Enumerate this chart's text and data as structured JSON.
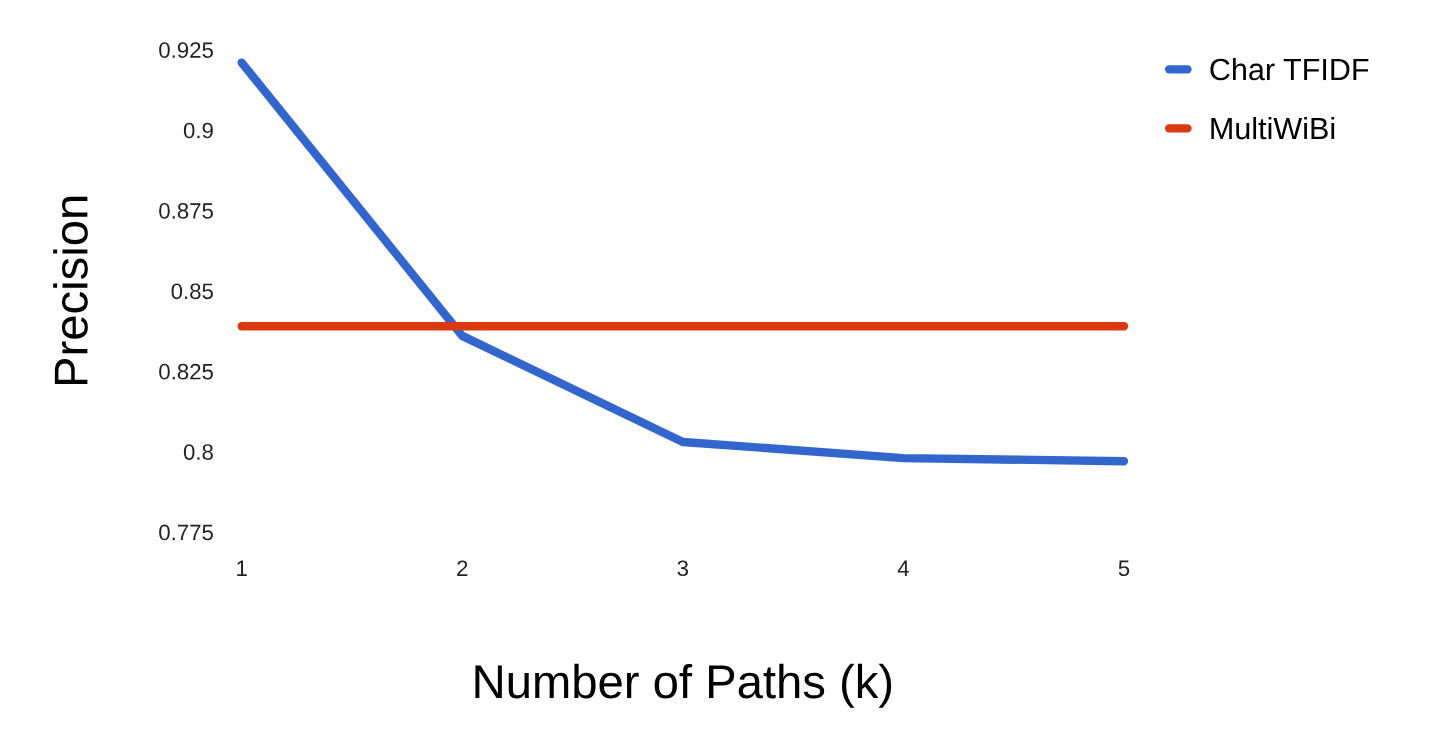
{
  "chart_data": {
    "type": "line",
    "xlabel": "Number of Paths (k)",
    "ylabel": "Precision",
    "x": [
      1,
      2,
      3,
      4,
      5
    ],
    "series": [
      {
        "name": "Char TFIDF",
        "color": "#3366cc",
        "values": [
          0.921,
          0.836,
          0.803,
          0.798,
          0.797
        ]
      },
      {
        "name": "MultiWiBi",
        "color": "#dc3912",
        "values": [
          0.839,
          0.839,
          0.839,
          0.839,
          0.839
        ]
      }
    ],
    "xlim": [
      1,
      5
    ],
    "xticks": [
      1,
      2,
      3,
      4,
      5
    ],
    "ylim": [
      0.775,
      0.925
    ],
    "yticks": [
      0.775,
      0.8,
      0.825,
      0.85,
      0.875,
      0.9,
      0.925
    ],
    "grid": false,
    "legend": "top right",
    "marker": "none",
    "line_style": "solid"
  }
}
